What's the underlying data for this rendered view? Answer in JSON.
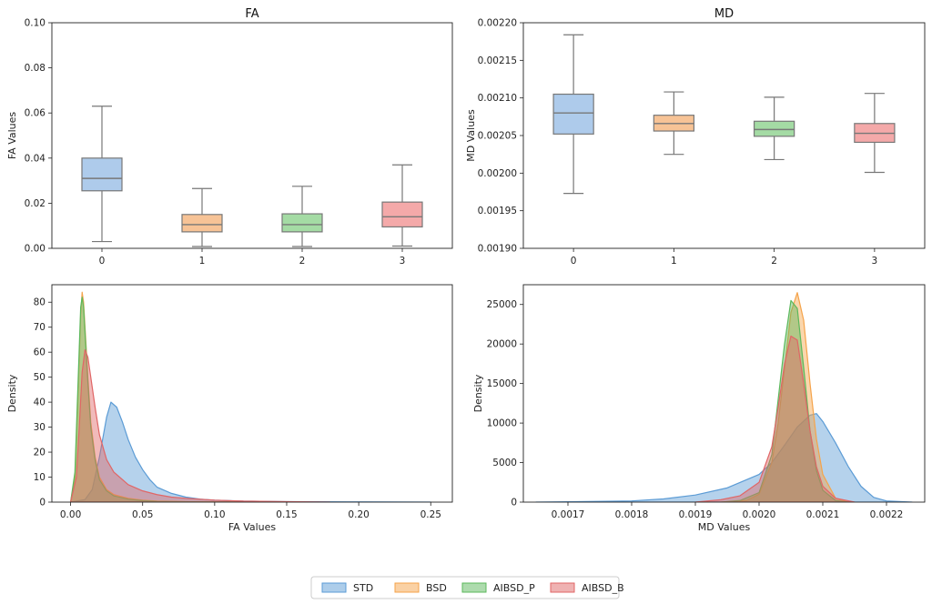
{
  "legend": {
    "position": "bottom-center",
    "items": [
      {
        "name": "STD",
        "color": "#5b9bd5"
      },
      {
        "name": "BSD",
        "color": "#f5a34a"
      },
      {
        "name": "AIBSD_P",
        "color": "#5cb85c"
      },
      {
        "name": "AIBSD_B",
        "color": "#e06666"
      }
    ]
  },
  "box_colors": [
    "#aecbeb",
    "#f7c396",
    "#a4dba4",
    "#f4a9a9"
  ],
  "chart_data": [
    {
      "id": "fa_box",
      "type": "box",
      "title": "FA",
      "xlabel": "",
      "ylabel": "FA Values",
      "categories": [
        "0",
        "1",
        "2",
        "3"
      ],
      "ylim": [
        0.0,
        0.1
      ],
      "yticks": [
        0.0,
        0.02,
        0.04,
        0.06,
        0.08,
        0.1
      ],
      "ytick_labels": [
        "0.00",
        "0.02",
        "0.04",
        "0.06",
        "0.08",
        "0.10"
      ],
      "boxes": [
        {
          "whislo": 0.003,
          "q1": 0.0255,
          "med": 0.031,
          "q3": 0.04,
          "whishi": 0.063
        },
        {
          "whislo": 0.0008,
          "q1": 0.0073,
          "med": 0.0105,
          "q3": 0.015,
          "whishi": 0.0265
        },
        {
          "whislo": 0.0008,
          "q1": 0.0073,
          "med": 0.0105,
          "q3": 0.0153,
          "whishi": 0.0275
        },
        {
          "whislo": 0.001,
          "q1": 0.0095,
          "med": 0.014,
          "q3": 0.0205,
          "whishi": 0.037
        }
      ]
    },
    {
      "id": "md_box",
      "type": "box",
      "title": "MD",
      "xlabel": "",
      "ylabel": "MD Values",
      "categories": [
        "0",
        "1",
        "2",
        "3"
      ],
      "ylim": [
        0.0019,
        0.0022
      ],
      "yticks": [
        0.0019,
        0.00195,
        0.002,
        0.00205,
        0.0021,
        0.00215,
        0.0022
      ],
      "ytick_labels": [
        "0.00190",
        "0.00195",
        "0.00200",
        "0.00205",
        "0.00210",
        "0.00215",
        "0.00220"
      ],
      "boxes": [
        {
          "whislo": 0.001973,
          "q1": 0.002052,
          "med": 0.00208,
          "q3": 0.002105,
          "whishi": 0.002184
        },
        {
          "whislo": 0.002025,
          "q1": 0.002056,
          "med": 0.002066,
          "q3": 0.002077,
          "whishi": 0.002108
        },
        {
          "whislo": 0.002018,
          "q1": 0.002049,
          "med": 0.002058,
          "q3": 0.002069,
          "whishi": 0.002101
        },
        {
          "whislo": 0.002001,
          "q1": 0.002041,
          "med": 0.002053,
          "q3": 0.002066,
          "whishi": 0.002106
        }
      ]
    },
    {
      "id": "fa_kde",
      "type": "area",
      "title": "",
      "xlabel": "FA Values",
      "ylabel": "Density",
      "xlim": [
        -0.013,
        0.265
      ],
      "ylim": [
        0,
        87
      ],
      "xticks": [
        0.0,
        0.05,
        0.1,
        0.15,
        0.2,
        0.25
      ],
      "xtick_labels": [
        "0.00",
        "0.05",
        "0.10",
        "0.15",
        "0.20",
        "0.25"
      ],
      "yticks": [
        0,
        10,
        20,
        30,
        40,
        50,
        60,
        70,
        80
      ],
      "ytick_labels": [
        "0",
        "10",
        "20",
        "30",
        "40",
        "50",
        "60",
        "70",
        "80"
      ],
      "series": [
        {
          "name": "STD",
          "x": [
            0.0,
            0.01,
            0.015,
            0.02,
            0.025,
            0.028,
            0.032,
            0.036,
            0.04,
            0.045,
            0.05,
            0.055,
            0.06,
            0.07,
            0.08,
            0.09,
            0.1,
            0.12,
            0.15,
            0.2,
            0.25
          ],
          "y": [
            0,
            1,
            5,
            18,
            34,
            40,
            38,
            32,
            25,
            18,
            13,
            9,
            6,
            3.5,
            2,
            1.2,
            0.8,
            0.4,
            0.2,
            0.1,
            0
          ]
        },
        {
          "name": "BSD",
          "x": [
            0.0,
            0.003,
            0.005,
            0.007,
            0.008,
            0.009,
            0.01,
            0.012,
            0.014,
            0.017,
            0.02,
            0.025,
            0.03,
            0.04,
            0.05,
            0.06,
            0.08,
            0.1,
            0.15
          ],
          "y": [
            0,
            10,
            40,
            75,
            84,
            80,
            70,
            50,
            32,
            18,
            10,
            5,
            3,
            1.5,
            0.8,
            0.4,
            0.2,
            0.1,
            0
          ]
        },
        {
          "name": "AIBSD_P",
          "x": [
            0.0,
            0.003,
            0.005,
            0.007,
            0.008,
            0.009,
            0.01,
            0.012,
            0.014,
            0.017,
            0.02,
            0.025,
            0.03,
            0.04,
            0.05,
            0.06,
            0.08,
            0.1,
            0.15
          ],
          "y": [
            0,
            12,
            45,
            78,
            82,
            78,
            68,
            48,
            30,
            17,
            9,
            4.5,
            2.5,
            1.2,
            0.6,
            0.3,
            0.15,
            0.05,
            0
          ]
        },
        {
          "name": "AIBSD_B",
          "x": [
            0.0,
            0.004,
            0.006,
            0.008,
            0.01,
            0.012,
            0.014,
            0.017,
            0.02,
            0.025,
            0.03,
            0.04,
            0.05,
            0.06,
            0.07,
            0.08,
            0.1,
            0.12,
            0.15,
            0.18
          ],
          "y": [
            0,
            10,
            30,
            52,
            61,
            58,
            50,
            38,
            27,
            17,
            12,
            7,
            4.5,
            3,
            2,
            1.5,
            0.8,
            0.4,
            0.2,
            0
          ]
        }
      ]
    },
    {
      "id": "md_kde",
      "type": "area",
      "title": "",
      "xlabel": "MD Values",
      "ylabel": "Density",
      "xlim": [
        0.00163,
        0.00226
      ],
      "ylim": [
        0,
        27500
      ],
      "xticks": [
        0.0017,
        0.0018,
        0.0019,
        0.002,
        0.0021,
        0.0022
      ],
      "xtick_labels": [
        "0.0017",
        "0.0018",
        "0.0019",
        "0.0020",
        "0.0021",
        "0.0022"
      ],
      "yticks": [
        0,
        5000,
        10000,
        15000,
        20000,
        25000
      ],
      "ytick_labels": [
        "0",
        "5000",
        "10000",
        "15000",
        "20000",
        "25000"
      ],
      "series": [
        {
          "name": "STD",
          "x": [
            0.00165,
            0.0018,
            0.00185,
            0.0019,
            0.00195,
            0.002,
            0.00202,
            0.00204,
            0.00206,
            0.00208,
            0.00209,
            0.0021,
            0.00212,
            0.00214,
            0.00216,
            0.00218,
            0.0022,
            0.00224
          ],
          "y": [
            0,
            150,
            400,
            900,
            1800,
            3500,
            5000,
            7200,
            9500,
            11000,
            11200,
            10200,
            7500,
            4500,
            2000,
            600,
            150,
            0
          ]
        },
        {
          "name": "BSD",
          "x": [
            0.00195,
            0.00198,
            0.002,
            0.00202,
            0.00203,
            0.00204,
            0.00205,
            0.00206,
            0.00207,
            0.00208,
            0.00209,
            0.0021,
            0.00212,
            0.00214
          ],
          "y": [
            0,
            200,
            1000,
            5000,
            10000,
            17000,
            24000,
            26500,
            23000,
            15000,
            8000,
            3500,
            500,
            0
          ]
        },
        {
          "name": "AIBSD_P",
          "x": [
            0.00194,
            0.00197,
            0.002,
            0.00202,
            0.00203,
            0.00204,
            0.00205,
            0.00206,
            0.00207,
            0.00208,
            0.00209,
            0.0021,
            0.00212,
            0.00214
          ],
          "y": [
            0,
            200,
            1200,
            6000,
            13000,
            20000,
            25500,
            24500,
            17000,
            9000,
            4000,
            1500,
            200,
            0
          ]
        },
        {
          "name": "AIBSD_B",
          "x": [
            0.0019,
            0.00194,
            0.00197,
            0.002,
            0.00202,
            0.00203,
            0.00204,
            0.00205,
            0.00206,
            0.00207,
            0.00208,
            0.00209,
            0.0021,
            0.00212,
            0.00215
          ],
          "y": [
            0,
            300,
            800,
            2500,
            7000,
            12000,
            17500,
            21000,
            20500,
            15000,
            9000,
            4500,
            2000,
            500,
            0
          ]
        }
      ]
    }
  ]
}
